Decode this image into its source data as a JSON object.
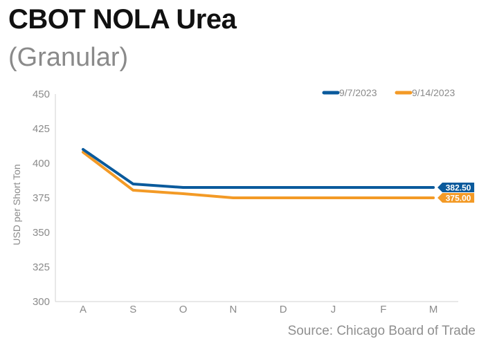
{
  "header": {
    "title": "CBOT NOLA Urea",
    "subtitle": "(Granular)"
  },
  "footer": {
    "source": "Source: Chicago Board of Trade"
  },
  "chart_data": {
    "type": "line",
    "title": "CBOT NOLA Urea",
    "subtitle": "(Granular)",
    "xlabel": "",
    "ylabel": "USD per Short Ton",
    "categories": [
      "A",
      "S",
      "O",
      "N",
      "D",
      "J",
      "F",
      "M"
    ],
    "ylim": [
      300,
      450
    ],
    "yticks": [
      300,
      325,
      350,
      375,
      400,
      425,
      450
    ],
    "grid": false,
    "legend_position": "top-right",
    "series": [
      {
        "name": "9/7/2023",
        "color": "#0a5a9c",
        "values": [
          410,
          385,
          382.5,
          382.5,
          382.5,
          382.5,
          382.5,
          382.5
        ],
        "end_label": "382.50"
      },
      {
        "name": "9/14/2023",
        "color": "#f39a26",
        "values": [
          408,
          380.5,
          378,
          375,
          375,
          375,
          375,
          375
        ],
        "end_label": "375.00"
      }
    ]
  }
}
